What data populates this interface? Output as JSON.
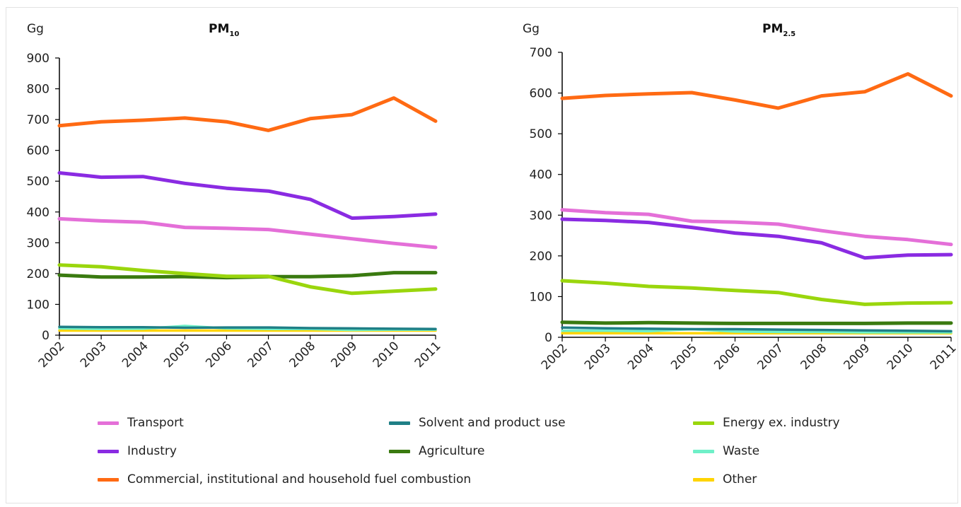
{
  "colors": {
    "transport": "#e46fd8",
    "solvent": "#1f7f86",
    "energy": "#9ad60d",
    "industry": "#8a2be2",
    "agriculture": "#3a7a10",
    "waste": "#6ff0c8",
    "commercial": "#ff6a13",
    "other": "#ffd400"
  },
  "legend": [
    {
      "key": "transport",
      "label": "Transport"
    },
    {
      "key": "solvent",
      "label": "Solvent and product use"
    },
    {
      "key": "energy",
      "label": "Energy ex. industry"
    },
    {
      "key": "industry",
      "label": "Industry"
    },
    {
      "key": "agriculture",
      "label": "Agriculture"
    },
    {
      "key": "waste",
      "label": "Waste"
    },
    {
      "key": "commercial",
      "label": "Commercial, institutional and household fuel combustion"
    },
    {
      "key": "other",
      "label": "Other"
    }
  ],
  "chart_data": [
    {
      "type": "line",
      "title_main": "PM",
      "title_sub": "10",
      "ylabel": "Gg",
      "x": [
        "2002",
        "2003",
        "2004",
        "2005",
        "2006",
        "2007",
        "2008",
        "2009",
        "2010",
        "2011"
      ],
      "ylim": [
        0,
        900
      ],
      "yticks": [
        0,
        100,
        200,
        300,
        400,
        500,
        600,
        700,
        800,
        900
      ],
      "grid": false,
      "series": [
        {
          "key": "commercial",
          "name": "Commercial, institutional and household fuel combustion",
          "values": [
            680,
            693,
            698,
            705,
            693,
            665,
            703,
            716,
            770,
            695
          ]
        },
        {
          "key": "industry",
          "name": "Industry",
          "values": [
            527,
            513,
            515,
            493,
            477,
            468,
            441,
            380,
            385,
            393
          ]
        },
        {
          "key": "transport",
          "name": "Transport",
          "values": [
            378,
            371,
            367,
            350,
            347,
            343,
            328,
            313,
            298,
            285
          ]
        },
        {
          "key": "energy",
          "name": "Energy ex. industry",
          "values": [
            228,
            222,
            210,
            200,
            191,
            191,
            157,
            136,
            143,
            150
          ]
        },
        {
          "key": "agriculture",
          "name": "Agriculture",
          "values": [
            195,
            189,
            189,
            190,
            187,
            190,
            190,
            193,
            203,
            203
          ]
        },
        {
          "key": "solvent",
          "name": "Solvent and product use",
          "values": [
            27,
            26,
            26,
            24,
            25,
            25,
            23,
            22,
            21,
            20
          ]
        },
        {
          "key": "waste",
          "name": "Waste",
          "values": [
            22,
            20,
            21,
            30,
            22,
            20,
            20,
            17,
            18,
            18
          ]
        },
        {
          "key": "other",
          "name": "Other",
          "values": [
            15,
            15,
            15,
            15,
            15,
            15,
            15,
            15,
            15,
            15
          ]
        }
      ]
    },
    {
      "type": "line",
      "title_main": "PM",
      "title_sub": "2.5",
      "ylabel": "Gg",
      "x": [
        "2002",
        "2003",
        "2004",
        "2005",
        "2006",
        "2007",
        "2008",
        "2009",
        "2010",
        "2011"
      ],
      "ylim": [
        0,
        700
      ],
      "yticks": [
        0,
        100,
        200,
        300,
        400,
        500,
        600,
        700
      ],
      "grid": false,
      "series": [
        {
          "key": "commercial",
          "name": "Commercial, institutional and household fuel combustion",
          "values": [
            587,
            594,
            598,
            601,
            583,
            563,
            593,
            603,
            647,
            593
          ]
        },
        {
          "key": "transport",
          "name": "Transport",
          "values": [
            313,
            306,
            302,
            285,
            283,
            278,
            262,
            248,
            240,
            228
          ]
        },
        {
          "key": "industry",
          "name": "Industry",
          "values": [
            290,
            287,
            282,
            270,
            256,
            248,
            232,
            195,
            202,
            203
          ]
        },
        {
          "key": "energy",
          "name": "Energy ex. industry",
          "values": [
            139,
            133,
            125,
            121,
            115,
            110,
            93,
            81,
            84,
            85
          ]
        },
        {
          "key": "agriculture",
          "name": "Agriculture",
          "values": [
            37,
            35,
            36,
            35,
            34,
            34,
            34,
            34,
            35,
            35
          ]
        },
        {
          "key": "solvent",
          "name": "Solvent and product use",
          "values": [
            24,
            22,
            21,
            20,
            20,
            19,
            18,
            17,
            16,
            15
          ]
        },
        {
          "key": "waste",
          "name": "Waste",
          "values": [
            16,
            16,
            15,
            20,
            14,
            13,
            13,
            12,
            12,
            12
          ]
        },
        {
          "key": "other",
          "name": "Other",
          "values": [
            10,
            10,
            10,
            10,
            10,
            10,
            10,
            10,
            10,
            10
          ]
        }
      ]
    }
  ]
}
